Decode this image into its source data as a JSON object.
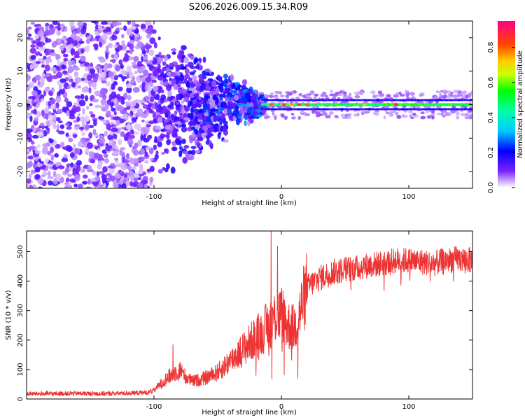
{
  "figure_title": "S206.2026.009.15.34.R09",
  "chart_data": [
    {
      "type": "heatmap",
      "xlabel": "Height of straight line (km)",
      "ylabel": "Frequency (Hz)",
      "xlim": [
        -200,
        150
      ],
      "ylim": [
        -25,
        25
      ],
      "x_ticks": [
        -100,
        0,
        100
      ],
      "x_tick_labels": [
        "-100",
        "0",
        "100"
      ],
      "y_ticks": [
        -20,
        -10,
        0,
        10,
        20
      ],
      "y_tick_labels": [
        "-20",
        "-10",
        "0",
        "10",
        "20"
      ],
      "colorbar": {
        "label": "Normalized spectral amplitude",
        "range": [
          0,
          0.95
        ],
        "ticks": [
          0.0,
          0.2,
          0.4,
          0.6,
          0.8
        ],
        "tick_labels": [
          "0.0",
          "0.2",
          "0.4",
          "0.6",
          "0.8"
        ],
        "colormap": [
          "#ffffff",
          "#6a00ff",
          "#0000ff",
          "#00ffff",
          "#00ff00",
          "#ffff00",
          "#ff8000",
          "#ff0000",
          "#ff0080"
        ]
      },
      "band_center_hz": 0,
      "band_halfwidth_hz": 1.5,
      "regions": [
        {
          "x_range": [
            -200,
            -100
          ],
          "amplitude": "0.0-0.2",
          "spread": "full frequency range"
        },
        {
          "x_range": [
            -100,
            -15
          ],
          "amplitude": "0.1-0.4",
          "spread": "narrowing toward 0 Hz"
        },
        {
          "x_range": [
            -15,
            150
          ],
          "amplitude": "0.4-0.9",
          "spread": "narrow band near 0 Hz"
        }
      ]
    },
    {
      "type": "line",
      "xlabel": "Height of straight line (km)",
      "ylabel": "SNR (10 * v/v)",
      "xlim": [
        -200,
        150
      ],
      "ylim": [
        0,
        570
      ],
      "x_ticks": [
        -100,
        0,
        100
      ],
      "x_tick_labels": [
        "-100",
        "0",
        "100"
      ],
      "y_ticks": [
        0,
        100,
        200,
        300,
        400,
        500
      ],
      "y_tick_labels": [
        "0",
        "100",
        "200",
        "300",
        "400",
        "500"
      ],
      "color": "#ee3333",
      "series": [
        {
          "name": "SNR",
          "x": [
            -200,
            -180,
            -160,
            -140,
            -120,
            -105,
            -100,
            -95,
            -90,
            -85,
            -80,
            -75,
            -70,
            -60,
            -50,
            -40,
            -30,
            -20,
            -10,
            -5,
            0,
            5,
            10,
            15,
            20,
            30,
            40,
            50,
            60,
            70,
            80,
            90,
            100,
            110,
            120,
            130,
            140,
            150
          ],
          "y": [
            18,
            18,
            19,
            18,
            20,
            22,
            30,
            50,
            70,
            85,
            100,
            75,
            60,
            70,
            90,
            130,
            170,
            210,
            250,
            280,
            290,
            250,
            240,
            300,
            380,
            410,
            430,
            440,
            445,
            455,
            460,
            470,
            470,
            465,
            460,
            470,
            475,
            470
          ]
        }
      ],
      "spikes": [
        {
          "x": -8,
          "y": 570
        },
        {
          "x": -3,
          "y": 520
        },
        {
          "x": -85,
          "y": 185
        }
      ]
    }
  ]
}
